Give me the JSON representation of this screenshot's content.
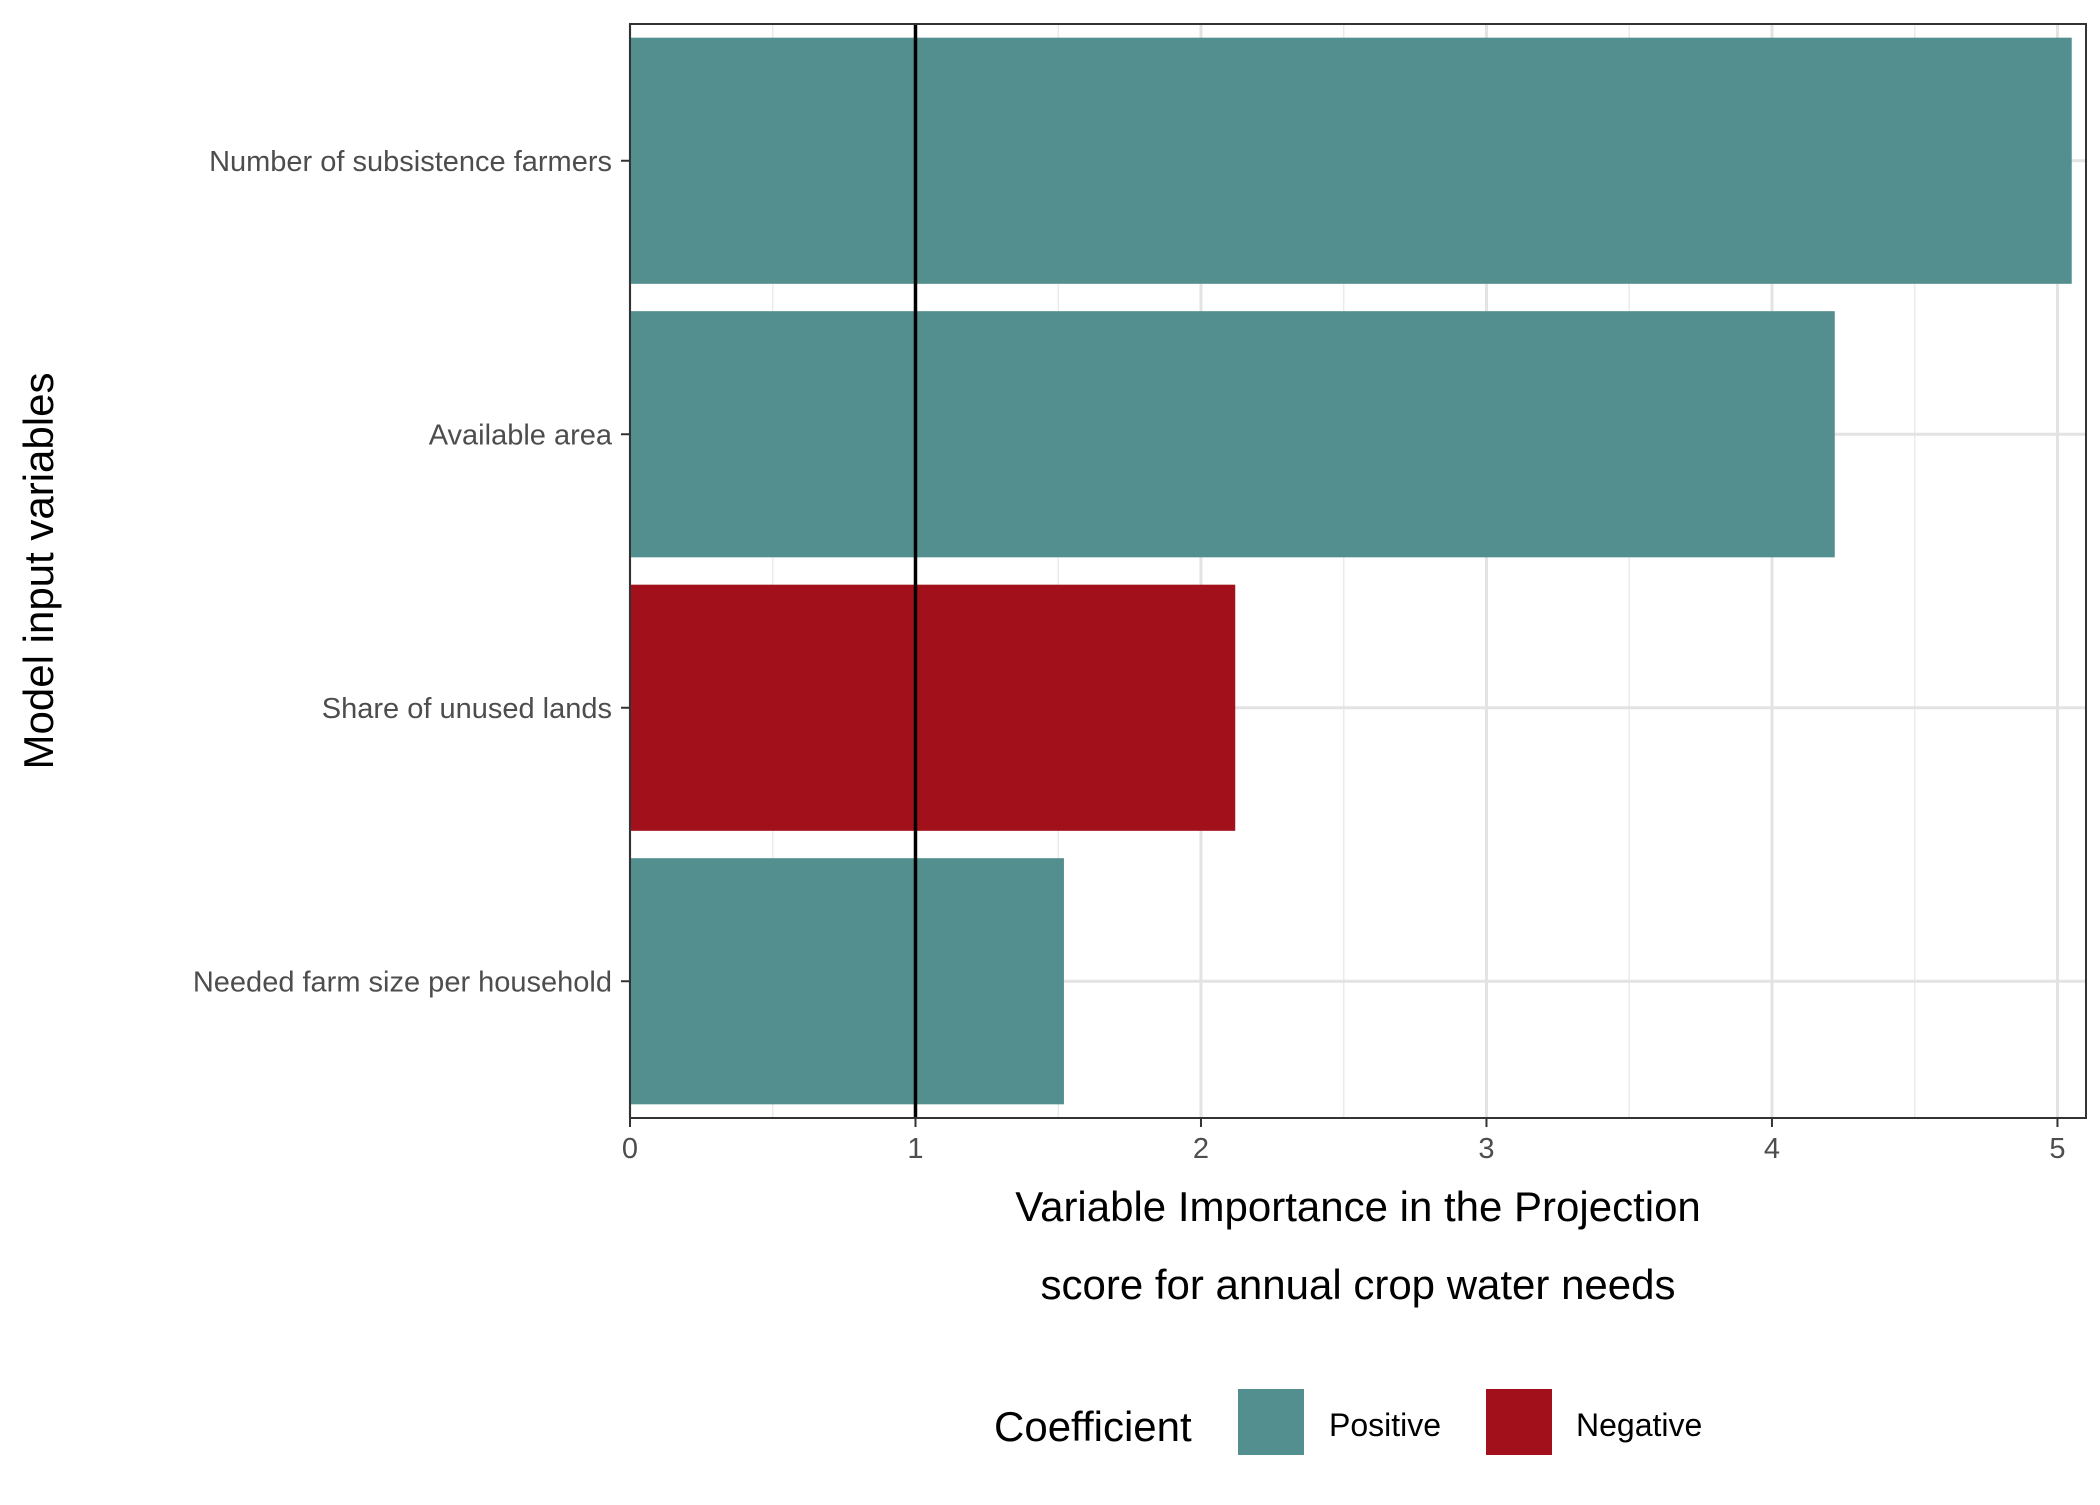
{
  "chart_data": {
    "type": "bar",
    "orientation": "horizontal",
    "categories": [
      "Number of subsistence farmers",
      "Available area",
      "Share of unused lands",
      "Needed farm size per household"
    ],
    "values": [
      5.05,
      4.22,
      2.12,
      1.52
    ],
    "coefficient": [
      "Positive",
      "Positive",
      "Negative",
      "Positive"
    ],
    "xlabel_lines": [
      "Variable Importance in the Projection",
      "score for annual crop water needs"
    ],
    "ylabel": "Model input variables",
    "xlim": [
      0,
      5.1
    ],
    "xticks": [
      0,
      1,
      2,
      3,
      4,
      5
    ],
    "reference_line": 1,
    "grid": true,
    "legend": {
      "title": "Coefficient",
      "position": "bottom",
      "entries": [
        {
          "label": "Positive",
          "color": "#528F8E"
        },
        {
          "label": "Negative",
          "color": "#A2111B"
        }
      ]
    },
    "colors": {
      "Positive": "#528F8E",
      "Negative": "#A2111B"
    }
  }
}
